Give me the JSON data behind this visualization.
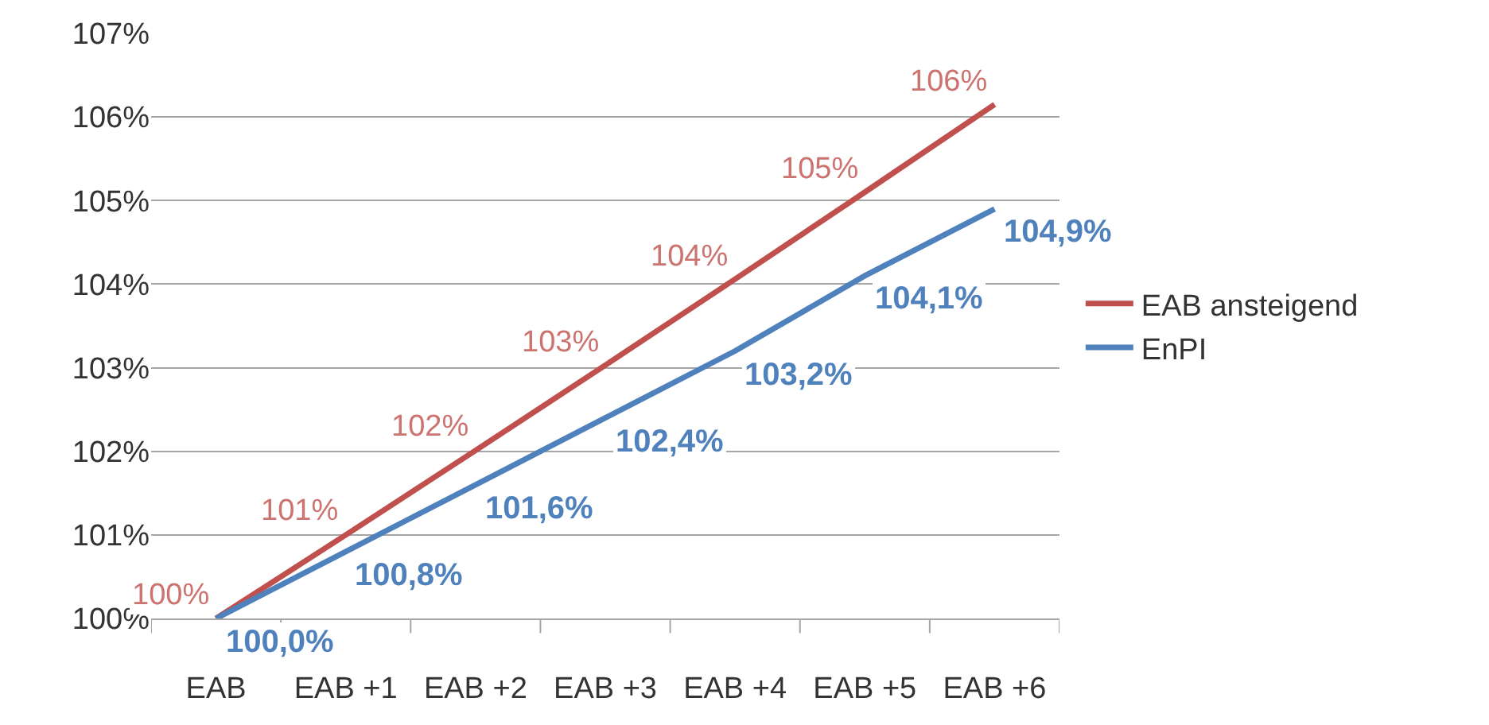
{
  "chart_data": {
    "type": "line",
    "categories": [
      "EAB",
      "EAB +1",
      "EAB +2",
      "EAB +3",
      "EAB +4",
      "EAB +5",
      "EAB +6"
    ],
    "series": [
      {
        "name": "EAB ansteigend",
        "color": "#c0504d",
        "values": [
          100,
          101,
          102.01,
          103.03,
          104.06,
          105.1,
          106.15
        ],
        "value_labels": [
          "100%",
          "101%",
          "102%",
          "103%",
          "104%",
          "105%",
          "106%"
        ]
      },
      {
        "name": "EnPI",
        "color": "#4f81bd",
        "values": [
          100,
          100.8,
          101.6,
          102.4,
          103.2,
          104.1,
          104.9
        ],
        "value_labels": [
          "100,0%",
          "100,8%",
          "101,6%",
          "102,4%",
          "103,2%",
          "104,1%",
          "104,9%"
        ]
      }
    ],
    "ylim": [
      100,
      107
    ],
    "yticks": [
      {
        "value": 100,
        "label": "100%"
      },
      {
        "value": 101,
        "label": "101%"
      },
      {
        "value": 102,
        "label": "102%"
      },
      {
        "value": 103,
        "label": "103%"
      },
      {
        "value": 104,
        "label": "104%"
      },
      {
        "value": 105,
        "label": "105%"
      },
      {
        "value": 106,
        "label": "106%"
      },
      {
        "value": 107,
        "label": "107%"
      }
    ],
    "grid": "y",
    "legend": "right",
    "marker": "none",
    "line_style": "solid"
  }
}
